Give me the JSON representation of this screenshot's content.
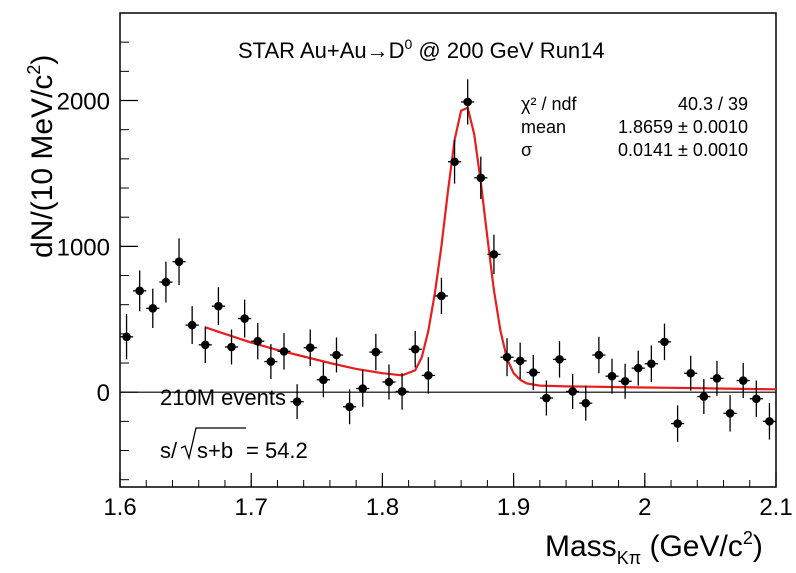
{
  "chart_data": {
    "type": "scatter",
    "title": "STAR Au+Au→D",
    "title_sup": "0",
    "title_rest": " @ 200 GeV Run14",
    "xlabel_main": "Mass",
    "xlabel_sub": "Kπ",
    "xlabel_rest": " (GeV/c",
    "xlabel_sup": "2",
    "xlabel_end": ")",
    "ylabel_main": "dN/(10 MeV/c",
    "ylabel_sup": "2",
    "ylabel_end": ")",
    "xlim": [
      1.6,
      2.1
    ],
    "ylim": [
      -650,
      2600
    ],
    "x_ticks": [
      1.6,
      1.7,
      1.8,
      1.9,
      2.0,
      2.1
    ],
    "x_tick_labels": [
      "1.6",
      "1.7",
      "1.8",
      "1.9",
      "2",
      "2.1"
    ],
    "y_ticks": [
      0,
      1000,
      2000
    ],
    "y_tick_labels": [
      "0",
      "1000",
      "2000"
    ],
    "zero_line": true,
    "grid": false,
    "series": [
      {
        "x": [
          1.605,
          1.615,
          1.625,
          1.635,
          1.645,
          1.655,
          1.665,
          1.675,
          1.685,
          1.695,
          1.705,
          1.715,
          1.725,
          1.735,
          1.745,
          1.755,
          1.765,
          1.775,
          1.785,
          1.795,
          1.805,
          1.815,
          1.825,
          1.835,
          1.845,
          1.855,
          1.865,
          1.875,
          1.885,
          1.895,
          1.905,
          1.915,
          1.925,
          1.935,
          1.945,
          1.955,
          1.965,
          1.975,
          1.985,
          1.995,
          2.005,
          2.015,
          2.025,
          2.035,
          2.045,
          2.055,
          2.065,
          2.075,
          2.085,
          2.095
        ],
        "y": [
          380,
          695,
          575,
          755,
          895,
          460,
          325,
          590,
          310,
          505,
          350,
          210,
          280,
          -65,
          305,
          85,
          255,
          -100,
          25,
          275,
          70,
          5,
          295,
          115,
          660,
          1580,
          1990,
          1470,
          945,
          240,
          215,
          135,
          -40,
          225,
          5,
          -75,
          255,
          110,
          75,
          165,
          195,
          345,
          -215,
          130,
          -30,
          95,
          -145,
          80,
          -45,
          -200
        ],
        "yerr": [
          155,
          140,
          135,
          140,
          160,
          130,
          125,
          130,
          120,
          130,
          125,
          120,
          125,
          120,
          125,
          120,
          120,
          120,
          125,
          125,
          120,
          125,
          125,
          125,
          125,
          150,
          155,
          145,
          135,
          130,
          125,
          120,
          120,
          125,
          120,
          120,
          125,
          120,
          120,
          120,
          125,
          125,
          125,
          120,
          120,
          120,
          125,
          120,
          125,
          125
        ],
        "xerr": 0.005
      }
    ],
    "fit": {
      "x": [
        1.665,
        1.68,
        1.7,
        1.72,
        1.74,
        1.76,
        1.78,
        1.8,
        1.815,
        1.825,
        1.83,
        1.835,
        1.84,
        1.845,
        1.85,
        1.855,
        1.86,
        1.865,
        1.87,
        1.875,
        1.88,
        1.885,
        1.89,
        1.895,
        1.9,
        1.905,
        1.91,
        1.92,
        1.94,
        1.96,
        1.98,
        2.0,
        2.02,
        2.04,
        2.06,
        2.08,
        2.1
      ],
      "y": [
        445,
        400,
        340,
        290,
        245,
        200,
        160,
        130,
        115,
        150,
        240,
        420,
        680,
        1000,
        1380,
        1730,
        1930,
        1950,
        1770,
        1440,
        1060,
        700,
        420,
        230,
        130,
        85,
        60,
        45,
        40,
        38,
        35,
        32,
        30,
        28,
        25,
        22,
        20
      ],
      "color": "#e81e1e"
    },
    "stats": {
      "rows": [
        {
          "label": "χ² / ndf",
          "value": "40.3 / 39"
        },
        {
          "label": "mean",
          "value": "1.8659 ± 0.0010"
        },
        {
          "label": "σ",
          "value": "0.0141 ± 0.0010"
        }
      ]
    },
    "annotations": {
      "events": "210M events",
      "significance_prefix": "s/",
      "significance_sqrt": "s+b",
      "significance_value": " = 54.2"
    }
  }
}
